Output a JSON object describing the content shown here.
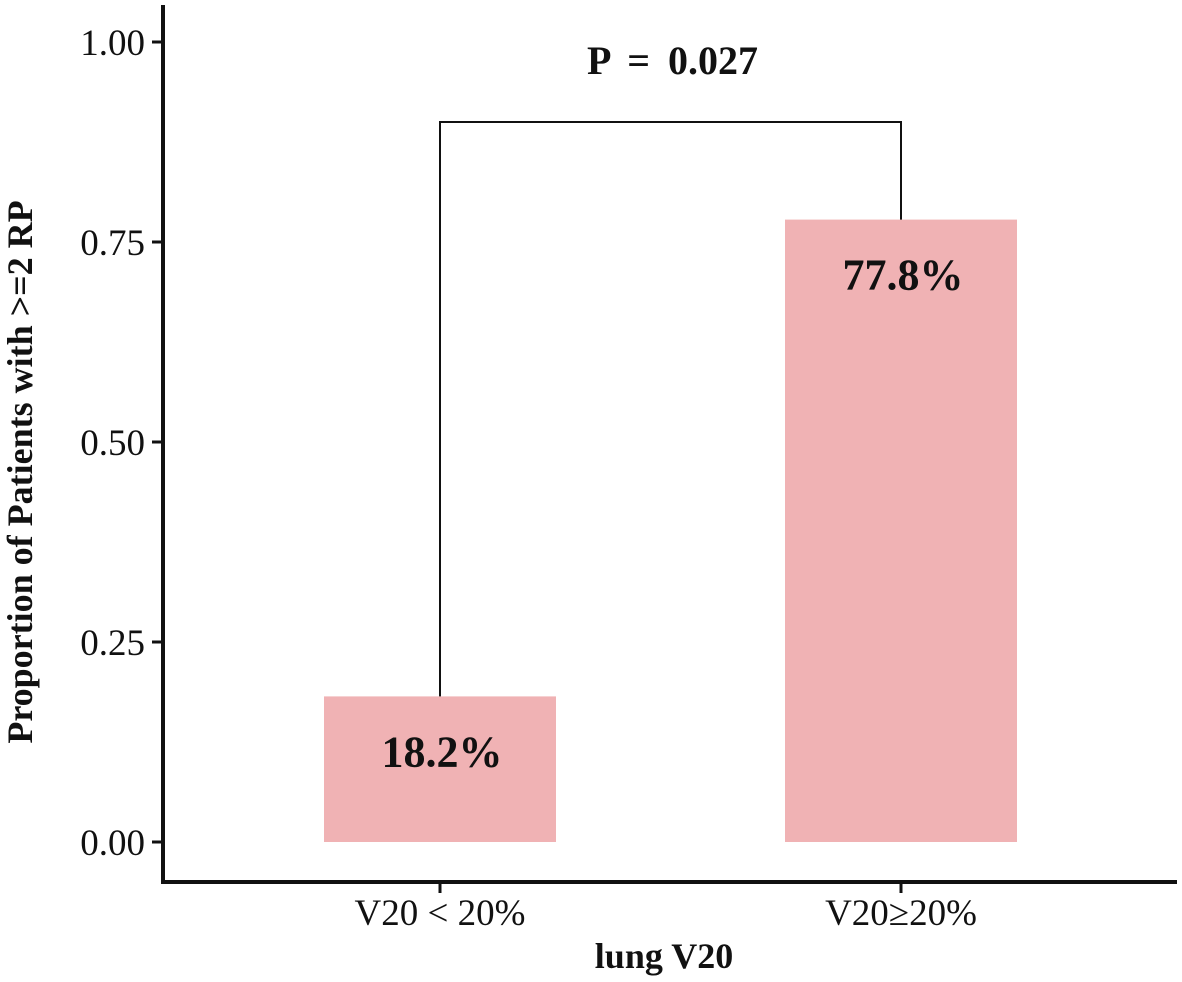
{
  "chart_data": {
    "type": "bar",
    "categories": [
      "V20 < 20%",
      "V20≥20%"
    ],
    "values": [
      0.182,
      0.778
    ],
    "bar_labels": [
      "18.2%",
      "77.8%"
    ],
    "bar_color": "#f0b2b4",
    "xlabel": "lung V20",
    "ylabel": "Proportion of Patients with >=2 RP",
    "ylim": [
      0,
      1.05
    ],
    "yticks": [
      0,
      0.25,
      0.5,
      0.75,
      1.0
    ],
    "ytick_labels": [
      "0.00",
      "0.25",
      "0.50",
      "0.75",
      "1.00"
    ],
    "grid": false,
    "annotation": {
      "text": "P = 0.027",
      "bracket_y": 0.9
    }
  }
}
